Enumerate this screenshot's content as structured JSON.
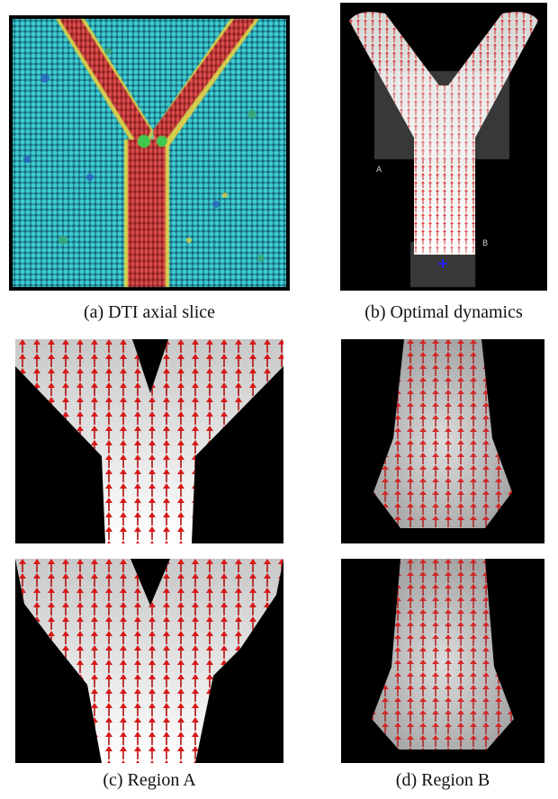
{
  "figure": {
    "panels": [
      {
        "id": "a",
        "caption": "(a) DTI axial slice",
        "icon": "dti-axial-slice-image"
      },
      {
        "id": "b",
        "caption": "(b) Optimal dynamics",
        "icon": "optimal-dynamics-vector-field",
        "region_labels": [
          "A",
          "B"
        ],
        "marker": "seed-cross-icon"
      },
      {
        "id": "c",
        "caption": "(c) Region A",
        "icon": "region-a-vector-field"
      },
      {
        "id": "d",
        "caption": "(d) Region B",
        "icon": "region-b-vector-field"
      }
    ],
    "colors": {
      "background": "#000000",
      "arrow": "#c81414",
      "tract_white": "#f4f4f4",
      "tissue_cyan": "#2ec7c9",
      "seed_blue": "#2020ff"
    }
  }
}
